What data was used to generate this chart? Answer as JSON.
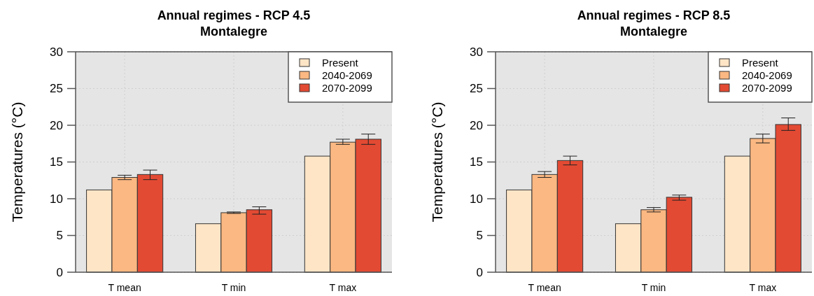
{
  "chart_data": [
    {
      "type": "bar",
      "title": "Annual regimes - RCP 4.5",
      "subtitle": "Montalegre",
      "ylabel": "Temperatures (°C)",
      "categories": [
        "T mean",
        "T min",
        "T max"
      ],
      "ylim": [
        0,
        30
      ],
      "yticks": [
        0,
        5,
        10,
        15,
        20,
        25,
        30
      ],
      "grid": true,
      "legend": "top right",
      "series": [
        {
          "name": "Present",
          "color": "#fee5c6",
          "values": [
            11.2,
            6.6,
            15.8
          ]
        },
        {
          "name": "2040-2069",
          "color": "#fbb882",
          "values": [
            12.9,
            8.1,
            17.7
          ],
          "errors": [
            [
              12.6,
              13.2
            ],
            [
              8.0,
              8.2
            ],
            [
              17.4,
              18.1
            ]
          ]
        },
        {
          "name": "2070-2099",
          "color": "#e34a33",
          "values": [
            13.3,
            8.5,
            18.1
          ],
          "errors": [
            [
              12.6,
              13.9
            ],
            [
              7.9,
              8.9
            ],
            [
              17.4,
              18.8
            ]
          ]
        }
      ]
    },
    {
      "type": "bar",
      "title": "Annual regimes - RCP 8.5",
      "subtitle": "Montalegre",
      "ylabel": "Temperatures (°C)",
      "categories": [
        "T mean",
        "T min",
        "T max"
      ],
      "ylim": [
        0,
        30
      ],
      "yticks": [
        0,
        5,
        10,
        15,
        20,
        25,
        30
      ],
      "grid": true,
      "legend": "top right",
      "series": [
        {
          "name": "Present",
          "color": "#fee5c6",
          "values": [
            11.2,
            6.6,
            15.8
          ]
        },
        {
          "name": "2040-2069",
          "color": "#fbb882",
          "values": [
            13.3,
            8.5,
            18.2
          ],
          "errors": [
            [
              12.9,
              13.7
            ],
            [
              8.2,
              8.8
            ],
            [
              17.6,
              18.8
            ]
          ]
        },
        {
          "name": "2070-2099",
          "color": "#e34a33",
          "values": [
            15.2,
            10.2,
            20.1
          ],
          "errors": [
            [
              14.6,
              15.8
            ],
            [
              9.8,
              10.5
            ],
            [
              19.3,
              21.0
            ]
          ]
        }
      ]
    }
  ]
}
